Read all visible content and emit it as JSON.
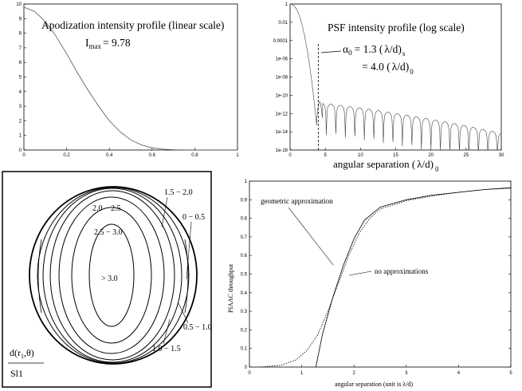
{
  "chart_data": [
    {
      "id": "apodization",
      "type": "line",
      "title": "Apodization intensity profile (linear scale)",
      "imax_label": "I",
      "imax_sub": "max",
      "imax_value": "= 9.78",
      "x": {
        "range": [
          0,
          1
        ],
        "ticks": [
          "0",
          "0.2",
          "0.4",
          "0.6",
          "0.8",
          "1"
        ]
      },
      "y": {
        "range": [
          0,
          10
        ],
        "ticks": [
          "0",
          "1",
          "2",
          "3",
          "4",
          "5",
          "6",
          "7",
          "8",
          "9",
          "10"
        ]
      },
      "series": [
        {
          "name": "apodization",
          "x": [
            0,
            0.05,
            0.1,
            0.15,
            0.2,
            0.25,
            0.3,
            0.35,
            0.4,
            0.45,
            0.5,
            0.55,
            0.6,
            0.65,
            0.7,
            0.8,
            1.0
          ],
          "y": [
            9.78,
            9.5,
            8.8,
            7.8,
            6.6,
            5.3,
            4.1,
            3.0,
            2.0,
            1.25,
            0.7,
            0.35,
            0.15,
            0.06,
            0.02,
            0.0,
            0.0
          ]
        }
      ]
    },
    {
      "id": "psf",
      "type": "line",
      "title": "PSF intensity profile (log scale)",
      "xlabel_main": "angular separation (",
      "xlabel_lambda": "λ",
      "xlabel_tail": "/d)",
      "xlabel_sub": "0",
      "x": {
        "range": [
          0,
          30
        ],
        "ticks": [
          "0",
          "5",
          "10",
          "15",
          "20",
          "25",
          "30"
        ]
      },
      "y": {
        "log_range": [
          -16,
          0
        ],
        "ticks": [
          "1",
          "0.01",
          "0.0001",
          "1e-06",
          "1e-08",
          "1e-10",
          "1e-12",
          "1e-14",
          "1e-16"
        ]
      },
      "annotation": {
        "alpha_symbol": "α",
        "alpha_sub": "0",
        "line1": "= 1.3 (",
        "lambda": "λ",
        "line1_tail": "/d)",
        "line1_sub": "s",
        "line2": "= 4.0 (",
        "line2_tail": "/d)",
        "line2_sub": "0",
        "cutoff_x": 4.0
      }
    },
    {
      "id": "contours",
      "type": "contour",
      "ylabel_num": "d(r",
      "ylabel_sub": "1",
      "ylabel_tail": ",θ)",
      "ylabel_den": "Sl1",
      "levels": [
        {
          "label": "> 3.0"
        },
        {
          "label": "2.5 − 3.0"
        },
        {
          "label": "2.0 − 2.5"
        },
        {
          "label": "1.5 − 2.0"
        },
        {
          "label": "0 − 0.5"
        },
        {
          "label": "0.5 − 1.0"
        },
        {
          "label": "1.0 − 1.5"
        }
      ]
    },
    {
      "id": "throughput",
      "type": "line",
      "xlabel": "angular separation (unit is λ/d)",
      "ylabel": "PIAAC throughput",
      "x": {
        "range": [
          0,
          5
        ],
        "ticks": [
          "0",
          "1",
          "2",
          "3",
          "4",
          "5"
        ]
      },
      "y": {
        "range": [
          0,
          1
        ],
        "ticks": [
          "0",
          "0.1",
          "0.2",
          "0.3",
          "0.4",
          "0.5",
          "0.6",
          "0.7",
          "0.8",
          "0.9",
          "1"
        ]
      },
      "series": [
        {
          "name": "geometric approximation",
          "style": "solid",
          "x": [
            1.27,
            1.4,
            1.6,
            1.8,
            2.0,
            2.2,
            2.5,
            3.0,
            3.5,
            4.0,
            4.5,
            5.0
          ],
          "y": [
            0.0,
            0.18,
            0.38,
            0.55,
            0.69,
            0.79,
            0.86,
            0.9,
            0.925,
            0.94,
            0.955,
            0.965
          ]
        },
        {
          "name": "no approximations",
          "style": "dotted",
          "x": [
            0.2,
            0.6,
            0.9,
            1.1,
            1.3,
            1.5,
            1.7,
            1.9,
            2.1,
            2.3,
            2.5,
            3.0,
            3.5,
            4.0,
            4.5,
            5.0
          ],
          "y": [
            0.0,
            0.01,
            0.04,
            0.09,
            0.17,
            0.3,
            0.45,
            0.6,
            0.72,
            0.8,
            0.85,
            0.895,
            0.92,
            0.94,
            0.955,
            0.962
          ]
        }
      ]
    }
  ]
}
